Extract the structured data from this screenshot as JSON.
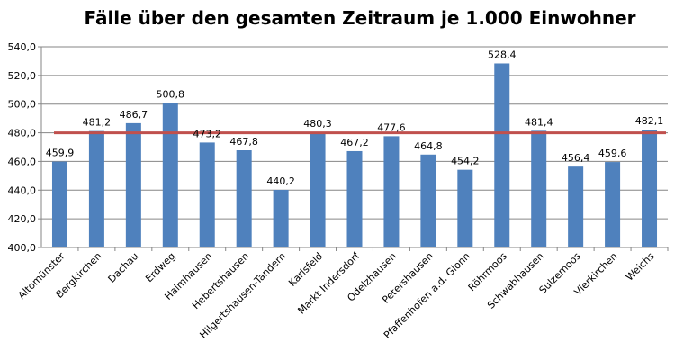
{
  "chart_data": {
    "type": "bar",
    "title": "Fälle über den gesamten Zeitraum je 1.000 Einwohner",
    "xlabel": "",
    "ylabel": "",
    "ylim": [
      400,
      540
    ],
    "yticks": [
      400,
      420,
      440,
      460,
      480,
      500,
      520,
      540
    ],
    "ytick_labels": [
      "400,0",
      "420,0",
      "440,0",
      "460,0",
      "480,0",
      "500,0",
      "520,0",
      "540,0"
    ],
    "grid": true,
    "categories": [
      "Altomünster",
      "Bergkirchen",
      "Dachau",
      "Erdweg",
      "Haimhausen",
      "Hebertshausen",
      "Hilgertshausen-Tandern",
      "Karlsfeld",
      "Markt Indersdorf",
      "Odelzhausen",
      "Petershausen",
      "Pfaffenhofen a.d. Glonn",
      "Röhrmoos",
      "Schwabhausen",
      "Sulzemoos",
      "Vierkirchen",
      "Weichs"
    ],
    "values": [
      459.9,
      481.2,
      486.7,
      500.8,
      473.2,
      467.8,
      440.2,
      480.3,
      467.2,
      477.6,
      464.8,
      454.2,
      528.4,
      481.4,
      456.4,
      459.6,
      482.1
    ],
    "value_labels": [
      "459,9",
      "481,2",
      "486,7",
      "500,8",
      "473,2",
      "467,8",
      "440,2",
      "480,3",
      "467,2",
      "477,6",
      "464,8",
      "454,2",
      "528,4",
      "481,4",
      "456,4",
      "459,6",
      "482,1"
    ],
    "reference_line": {
      "value": 480,
      "color": "#c0504d"
    },
    "bar_color": "#4f81bd"
  }
}
